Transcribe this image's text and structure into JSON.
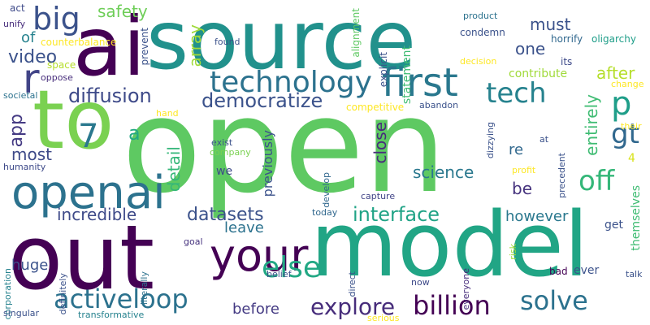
{
  "colors": {
    "background": "#ffffff",
    "palette": [
      "#440154",
      "#3b528b",
      "#21918c",
      "#5ec962",
      "#fde725"
    ]
  },
  "words": [
    {
      "text": "source",
      "color": "#21918c"
    },
    {
      "text": "ai",
      "color": "#440154"
    },
    {
      "text": "to",
      "color": "#7ad151"
    },
    {
      "text": "open",
      "color": "#5ec962"
    },
    {
      "text": "out",
      "color": "#440154"
    },
    {
      "text": "model",
      "color": "#21a585"
    },
    {
      "text": "your",
      "color": "#440154"
    },
    {
      "text": "openai",
      "color": "#2c728e"
    },
    {
      "text": "first",
      "color": "#2a788e"
    },
    {
      "text": "technology",
      "color": "#2c728e"
    },
    {
      "text": "tech",
      "color": "#26828e"
    },
    {
      "text": "big",
      "color": "#3b528b"
    },
    {
      "text": "r",
      "color": "#414487"
    },
    {
      "text": "p",
      "color": "#1f9e89"
    },
    {
      "text": "gt",
      "color": "#31688e"
    },
    {
      "text": "off",
      "color": "#35b779"
    },
    {
      "text": "7",
      "color": "#2a788e"
    },
    {
      "text": "a",
      "color": "#22a884"
    },
    {
      "text": "else",
      "color": "#22a884"
    },
    {
      "text": "billion",
      "color": "#440154"
    },
    {
      "text": "explore",
      "color": "#472d7b"
    },
    {
      "text": "solve",
      "color": "#2c728e"
    },
    {
      "text": "activeloop",
      "color": "#2c728e"
    },
    {
      "text": "democratize",
      "color": "#3b528b"
    },
    {
      "text": "diffusion",
      "color": "#3e4a89"
    },
    {
      "text": "interface",
      "color": "#20a386"
    },
    {
      "text": "datasets",
      "color": "#3b528b"
    },
    {
      "text": "incredible",
      "color": "#3e4a89"
    },
    {
      "text": "science",
      "color": "#2a788e"
    },
    {
      "text": "safety",
      "color": "#6ece58"
    },
    {
      "text": "video",
      "color": "#3b528b"
    },
    {
      "text": "app",
      "color": "#443a83"
    },
    {
      "text": "most",
      "color": "#3e4a89"
    },
    {
      "text": "detail",
      "color": "#35b779"
    },
    {
      "text": "close",
      "color": "#472d7b"
    },
    {
      "text": "array",
      "color": "#a0da39"
    },
    {
      "text": "must",
      "color": "#3b528b"
    },
    {
      "text": "one",
      "color": "#3b528b"
    },
    {
      "text": "after",
      "color": "#b5de2b"
    },
    {
      "text": "contribute",
      "color": "#a0da39"
    },
    {
      "text": "entirely",
      "color": "#3fbc73"
    },
    {
      "text": "be",
      "color": "#46337e"
    },
    {
      "text": "re",
      "color": "#31688e"
    },
    {
      "text": "4",
      "color": "#d8e219"
    },
    {
      "text": "however",
      "color": "#2a788e"
    },
    {
      "text": "leave",
      "color": "#2c728e"
    },
    {
      "text": "huge",
      "color": "#3b528b"
    },
    {
      "text": "before",
      "color": "#443a83"
    },
    {
      "text": "previously",
      "color": "#3b528b"
    },
    {
      "text": "of",
      "color": "#26828e"
    },
    {
      "text": "we",
      "color": "#3e4a89"
    },
    {
      "text": "get",
      "color": "#3b528b"
    },
    {
      "text": "ever",
      "color": "#3b528b"
    },
    {
      "text": "themselves",
      "color": "#3fbc73"
    },
    {
      "text": "statement",
      "color": "#3fbc73"
    },
    {
      "text": "condemn",
      "color": "#3b528b"
    },
    {
      "text": "horrify",
      "color": "#31688e"
    },
    {
      "text": "oligarchy",
      "color": "#1f9e89"
    },
    {
      "text": "product",
      "color": "#2c728e"
    },
    {
      "text": "explicit",
      "color": "#3b528b"
    },
    {
      "text": "alignment",
      "color": "#5ec962"
    },
    {
      "text": "its",
      "color": "#3e4a89"
    },
    {
      "text": "decision",
      "color": "#fde725"
    },
    {
      "text": "change",
      "color": "#fde725"
    },
    {
      "text": "abandon",
      "color": "#3b528b"
    },
    {
      "text": "competitive",
      "color": "#fde725"
    },
    {
      "text": "prevent",
      "color": "#3b528b"
    },
    {
      "text": "found",
      "color": "#3b528b"
    },
    {
      "text": "hand",
      "color": "#fde725"
    },
    {
      "text": "space",
      "color": "#b5de2b"
    },
    {
      "text": "counterbalance",
      "color": "#fde725"
    },
    {
      "text": "unify",
      "color": "#472d7b"
    },
    {
      "text": "act",
      "color": "#3e4a89"
    },
    {
      "text": "oppose",
      "color": "#472d7b"
    },
    {
      "text": "societal",
      "color": "#2c728e"
    },
    {
      "text": "exist",
      "color": "#3b528b"
    },
    {
      "text": "company",
      "color": "#7ad151"
    },
    {
      "text": "humanity",
      "color": "#3e4a89"
    },
    {
      "text": "develop",
      "color": "#31688e"
    },
    {
      "text": "capture",
      "color": "#414487"
    },
    {
      "text": "today",
      "color": "#31688e"
    },
    {
      "text": "goal",
      "color": "#46337e"
    },
    {
      "text": "corporation",
      "color": "#26828e"
    },
    {
      "text": "definitely",
      "color": "#3b528b"
    },
    {
      "text": "literally",
      "color": "#2c728e"
    },
    {
      "text": "belief",
      "color": "#3b528b"
    },
    {
      "text": "direct",
      "color": "#3b528b"
    },
    {
      "text": "everyone",
      "color": "#472d7b"
    },
    {
      "text": "risk",
      "color": "#a0da39"
    },
    {
      "text": "now",
      "color": "#3e4a89"
    },
    {
      "text": "bad",
      "color": "#440154"
    },
    {
      "text": "talk",
      "color": "#3b528b"
    },
    {
      "text": "precedent",
      "color": "#3b528b"
    },
    {
      "text": "profit",
      "color": "#fde725"
    },
    {
      "text": "their",
      "color": "#fde725"
    },
    {
      "text": "dizzying",
      "color": "#3b528b"
    },
    {
      "text": "at",
      "color": "#3b528b"
    },
    {
      "text": "singular",
      "color": "#3b528b"
    },
    {
      "text": "transformative",
      "color": "#26828e"
    },
    {
      "text": "serious",
      "color": "#fde725"
    }
  ]
}
